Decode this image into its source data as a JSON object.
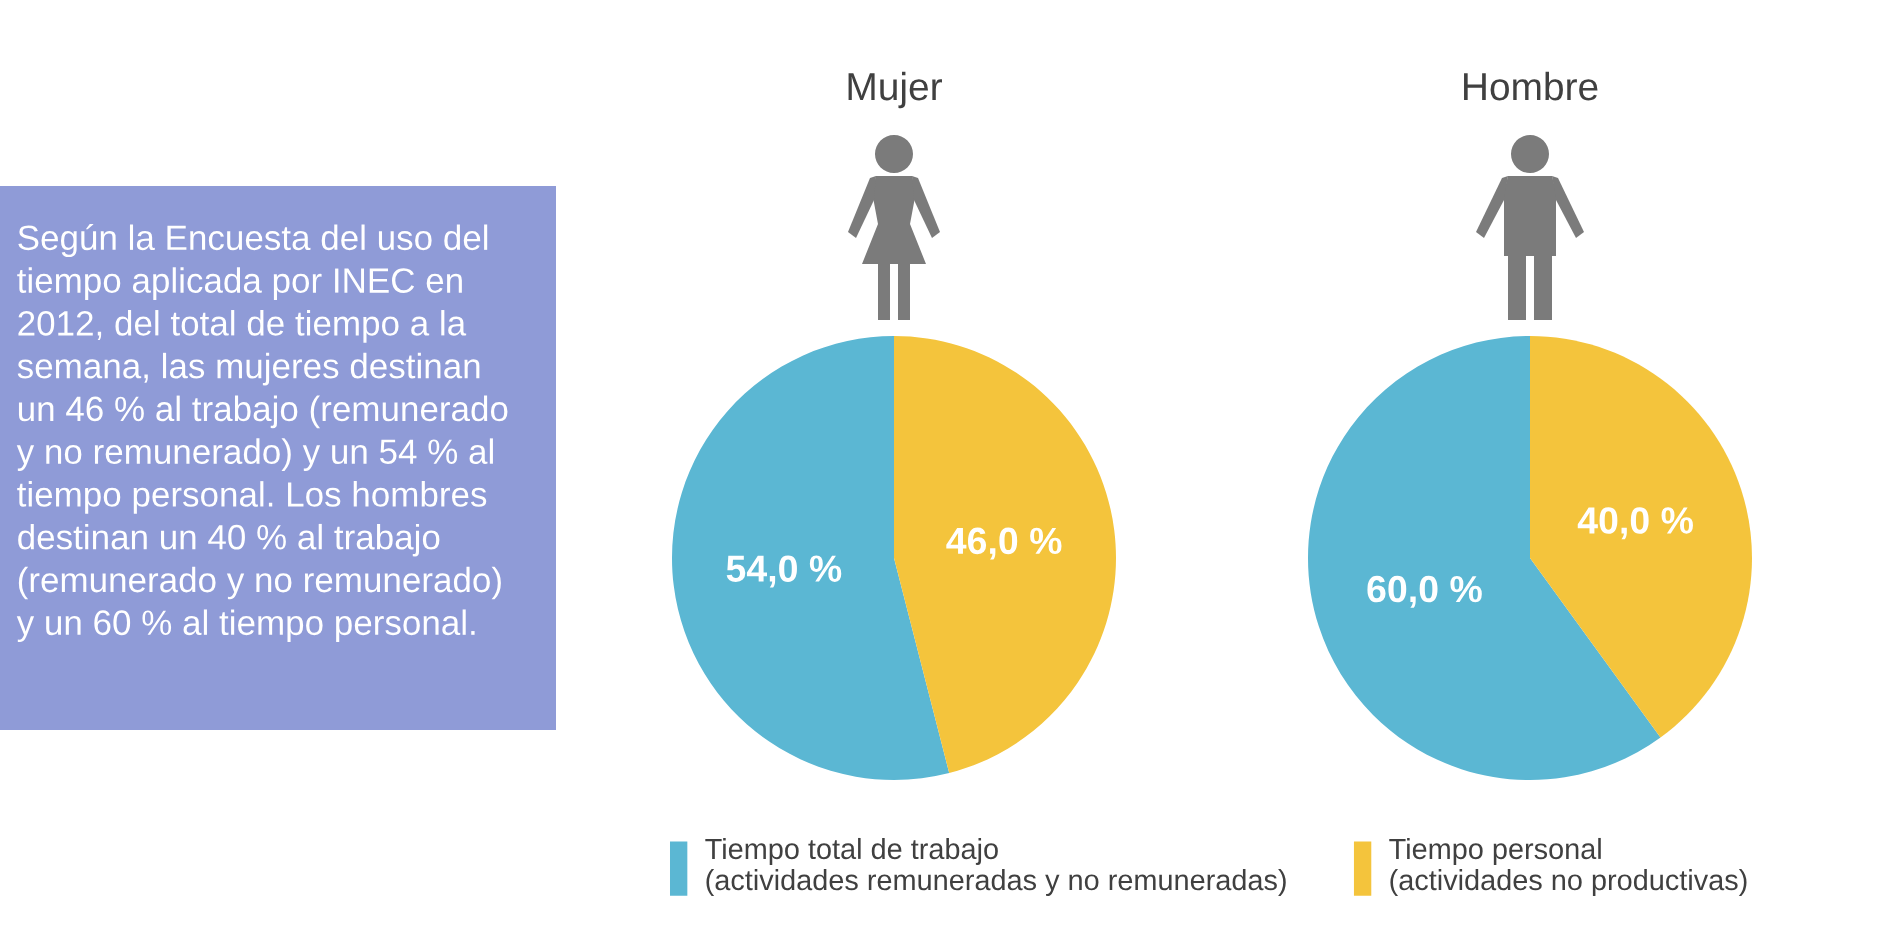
{
  "chart_data": [
    {
      "type": "other",
      "color": "#8f9bd7",
      "annotations": [
        "Según la Encuesta del uso del\ntiempo aplicada por INEC en\n2012, del total de tiempo a la\nsemana, las mujeres destinan\nun 46 % al trabajo (remunerado\ny no remunerado) y un 54 % al\ntiempo personal. Los hombres\ndestinan un 40 % al trabajo\n(remunerado y no remunerado)\ny un 60 % al tiempo personal."
      ]
    },
    {
      "type": "pie",
      "categories": [
        "Tiempo total de trabajo\n(actividades remuneradas y no remuneradas)",
        "Tiempo personal\n(actividades no productivas)"
      ],
      "colors": [
        "#5bb7d3",
        "#f4c43c"
      ],
      "legend": "bottom",
      "series": [
        {
          "name": "Mujer",
          "values": [
            54,
            46
          ],
          "value_labels": [
            "54,0 %",
            "46,0 %"
          ]
        },
        {
          "name": "Hombre",
          "values": [
            60,
            40
          ],
          "value_labels": [
            "60,0 %",
            "40,0 %"
          ]
        }
      ]
    }
  ]
}
